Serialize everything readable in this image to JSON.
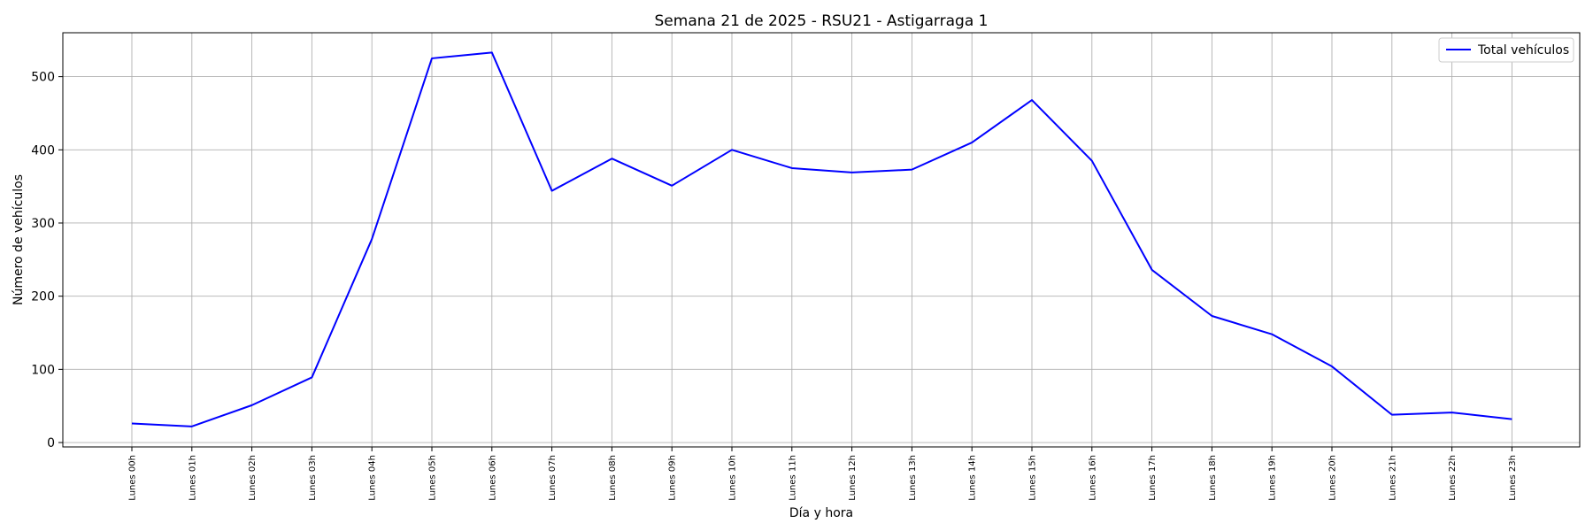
{
  "chart_data": {
    "type": "line",
    "title": "Semana 21 de 2025 - RSU21 - Astigarraga 1",
    "xlabel": "Día y hora",
    "ylabel": "Número de vehículos",
    "categories": [
      "Lunes 00h",
      "Lunes 01h",
      "Lunes 02h",
      "Lunes 03h",
      "Lunes 04h",
      "Lunes 05h",
      "Lunes 06h",
      "Lunes 07h",
      "Lunes 08h",
      "Lunes 09h",
      "Lunes 10h",
      "Lunes 11h",
      "Lunes 12h",
      "Lunes 13h",
      "Lunes 14h",
      "Lunes 15h",
      "Lunes 16h",
      "Lunes 17h",
      "Lunes 18h",
      "Lunes 19h",
      "Lunes 20h",
      "Lunes 21h",
      "Lunes 22h",
      "Lunes 23h"
    ],
    "series": [
      {
        "name": "Total vehículos",
        "color": "#0000ff",
        "values": [
          26,
          22,
          51,
          89,
          278,
          525,
          533,
          344,
          388,
          351,
          400,
          375,
          369,
          373,
          410,
          468,
          385,
          236,
          173,
          148,
          104,
          38,
          41,
          32
        ]
      }
    ],
    "yticks": [
      0,
      100,
      200,
      300,
      400,
      500
    ],
    "ylim": [
      -6,
      560
    ],
    "grid": true,
    "legend_position": "top-right"
  }
}
